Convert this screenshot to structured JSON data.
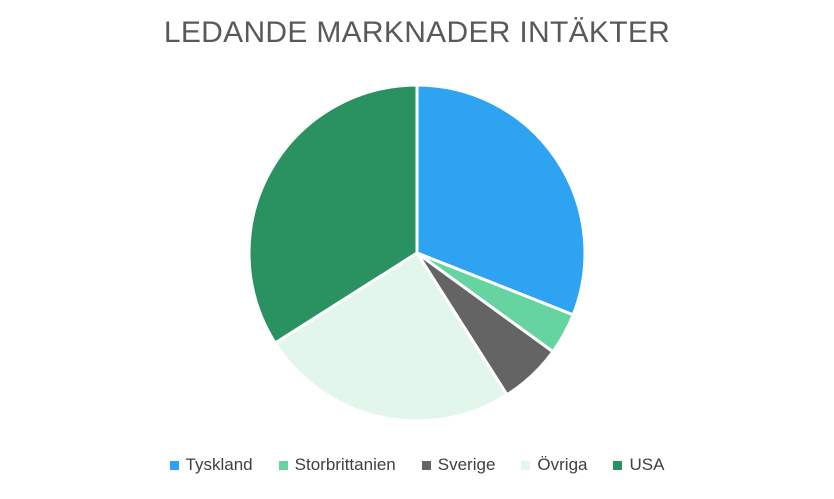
{
  "chart_data": {
    "type": "pie",
    "title": "LEDANDE MARKNADER INTÄKTER",
    "legend_position": "bottom",
    "slices": [
      {
        "label": "Tyskland",
        "value": 31,
        "color": "#2EA3F2"
      },
      {
        "label": "Storbrittanien",
        "value": 4,
        "color": "#66D4A0"
      },
      {
        "label": "Sverige",
        "value": 6,
        "color": "#646464"
      },
      {
        "label": "Övriga",
        "value": 25,
        "color": "#E2F6EC"
      },
      {
        "label": "USA",
        "value": 34,
        "color": "#2A9160"
      }
    ]
  }
}
